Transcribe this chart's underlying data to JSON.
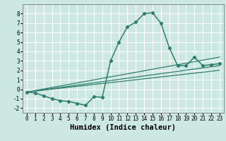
{
  "xlabel": "Humidex (Indice chaleur)",
  "background_color": "#cce8e0",
  "grid_color": "#ffffff",
  "line_color": "#2e7d6e",
  "xlim": [
    -0.5,
    23.5
  ],
  "ylim": [
    -2.5,
    9.0
  ],
  "yticks": [
    -2,
    -1,
    0,
    1,
    2,
    3,
    4,
    5,
    6,
    7,
    8
  ],
  "xticks": [
    0,
    1,
    2,
    3,
    4,
    5,
    6,
    7,
    8,
    9,
    10,
    11,
    12,
    13,
    14,
    15,
    16,
    17,
    18,
    19,
    20,
    21,
    22,
    23
  ],
  "series1_x": [
    0,
    1,
    2,
    3,
    4,
    5,
    6,
    7,
    8,
    9,
    10,
    11,
    12,
    13,
    14,
    15,
    16,
    17,
    18,
    19,
    20,
    21,
    22,
    23
  ],
  "series1_y": [
    -0.3,
    -0.4,
    -0.7,
    -1.0,
    -1.2,
    -1.3,
    -1.5,
    -1.7,
    -0.8,
    -0.85,
    3.0,
    5.0,
    6.6,
    7.1,
    8.0,
    8.1,
    7.0,
    4.4,
    2.5,
    2.5,
    3.4,
    2.5,
    2.6,
    2.7
  ],
  "series2_x": [
    0,
    23
  ],
  "series2_y": [
    -0.3,
    3.4
  ],
  "series3_x": [
    0,
    23
  ],
  "series3_y": [
    -0.3,
    2.5
  ],
  "series4_x": [
    0,
    23
  ],
  "series4_y": [
    -0.3,
    2.0
  ],
  "tick_fontsize": 5.5,
  "xlabel_fontsize": 7.5
}
